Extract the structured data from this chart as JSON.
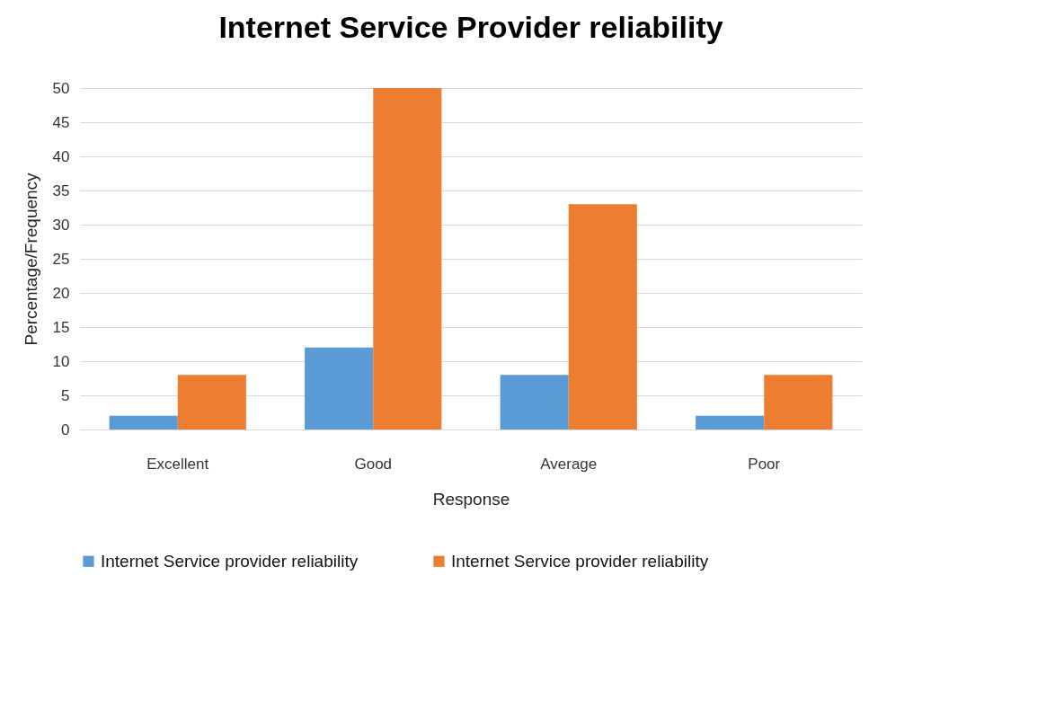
{
  "chart_data": {
    "type": "bar",
    "title": "Internet Service Provider reliability",
    "xlabel": "Response",
    "ylabel": "Percentage/Frequency",
    "categories": [
      "Excellent",
      "Good",
      "Average",
      "Poor"
    ],
    "series": [
      {
        "name": "Internet Service provider reliability",
        "color": "#5b9bd5",
        "values": [
          2,
          12,
          8,
          2
        ]
      },
      {
        "name": "Internet Service provider reliability",
        "color": "#ed7d31",
        "values": [
          8,
          50,
          33,
          8
        ]
      }
    ],
    "ylim": [
      0,
      50
    ],
    "yticks": [
      0,
      5,
      10,
      15,
      20,
      25,
      30,
      35,
      40,
      45,
      50
    ],
    "grid": "y",
    "legend": "bottom"
  }
}
